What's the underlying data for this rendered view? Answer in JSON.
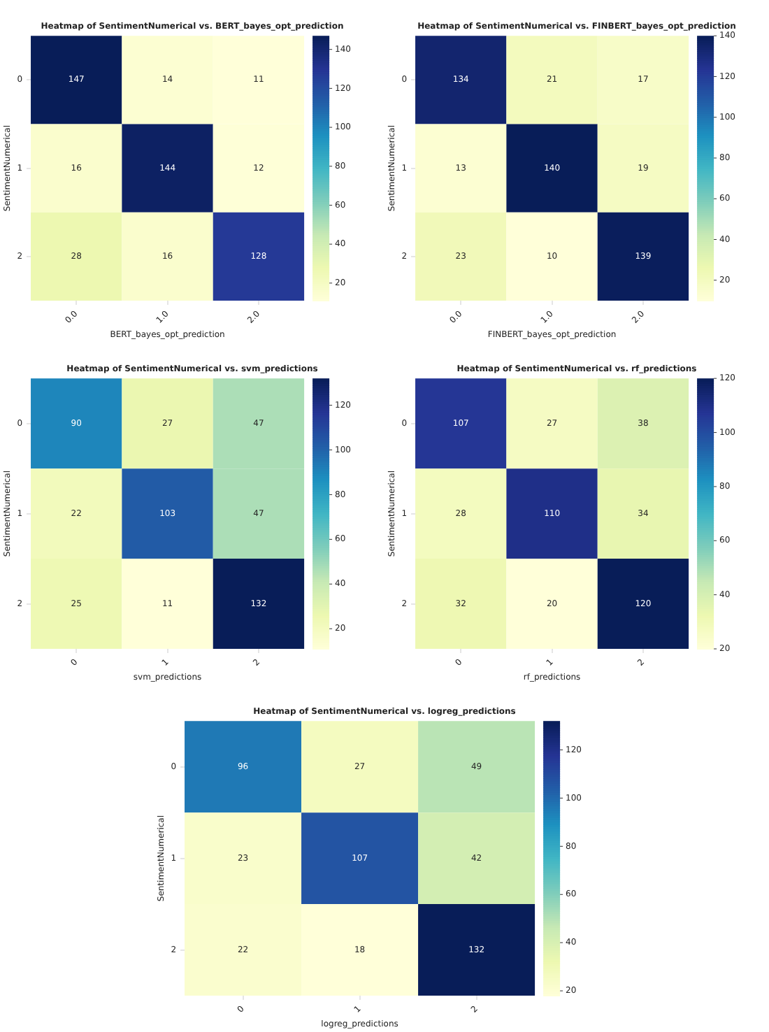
{
  "chart_data": [
    {
      "type": "heatmap",
      "title": "Heatmap of SentimentNumerical vs. BERT_bayes_opt_prediction",
      "xlabel": "BERT_bayes_opt_prediction",
      "ylabel": "SentimentNumerical",
      "categories": [
        "0.0",
        "1.0",
        "2.0"
      ],
      "y_categories": [
        "0",
        "1",
        "2"
      ],
      "cells": [
        [
          147,
          14,
          11
        ],
        [
          16,
          144,
          12
        ],
        [
          28,
          16,
          128
        ]
      ],
      "clim": [
        11,
        147
      ],
      "cticks": [
        20,
        40,
        60,
        80,
        100,
        120,
        140
      ],
      "data_labels": true
    },
    {
      "type": "heatmap",
      "title": "Heatmap of SentimentNumerical vs. FINBERT_bayes_opt_prediction",
      "xlabel": "FINBERT_bayes_opt_prediction",
      "ylabel": "SentimentNumerical",
      "categories": [
        "0.0",
        "1.0",
        "2.0"
      ],
      "y_categories": [
        "0",
        "1",
        "2"
      ],
      "cells": [
        [
          134,
          21,
          17
        ],
        [
          13,
          140,
          19
        ],
        [
          23,
          10,
          139
        ]
      ],
      "clim": [
        10,
        140
      ],
      "cticks": [
        20,
        40,
        60,
        80,
        100,
        120,
        140
      ],
      "data_labels": true
    },
    {
      "type": "heatmap",
      "title": "Heatmap of SentimentNumerical vs. svm_predictions",
      "xlabel": "svm_predictions",
      "ylabel": "SentimentNumerical",
      "categories": [
        "0",
        "1",
        "2"
      ],
      "y_categories": [
        "0",
        "1",
        "2"
      ],
      "cells": [
        [
          90,
          27,
          47
        ],
        [
          22,
          103,
          47
        ],
        [
          25,
          11,
          132
        ]
      ],
      "clim": [
        11,
        132
      ],
      "cticks": [
        20,
        40,
        60,
        80,
        100,
        120
      ],
      "data_labels": true
    },
    {
      "type": "heatmap",
      "title": "Heatmap of SentimentNumerical vs. rf_predictions",
      "xlabel": "rf_predictions",
      "ylabel": "SentimentNumerical",
      "categories": [
        "0",
        "1",
        "2"
      ],
      "y_categories": [
        "0",
        "1",
        "2"
      ],
      "cells": [
        [
          107,
          27,
          38
        ],
        [
          28,
          110,
          34
        ],
        [
          32,
          20,
          120
        ]
      ],
      "clim": [
        20,
        120
      ],
      "cticks": [
        20,
        40,
        60,
        80,
        100,
        120
      ],
      "data_labels": true
    },
    {
      "type": "heatmap",
      "title": "Heatmap of SentimentNumerical vs. logreg_predictions",
      "xlabel": "logreg_predictions",
      "ylabel": "SentimentNumerical",
      "categories": [
        "0",
        "1",
        "2"
      ],
      "y_categories": [
        "0",
        "1",
        "2"
      ],
      "cells": [
        [
          96,
          27,
          49
        ],
        [
          23,
          107,
          42
        ],
        [
          22,
          18,
          132
        ]
      ],
      "clim": [
        18,
        132
      ],
      "cticks": [
        20,
        40,
        60,
        80,
        100,
        120
      ],
      "data_labels": true
    }
  ]
}
